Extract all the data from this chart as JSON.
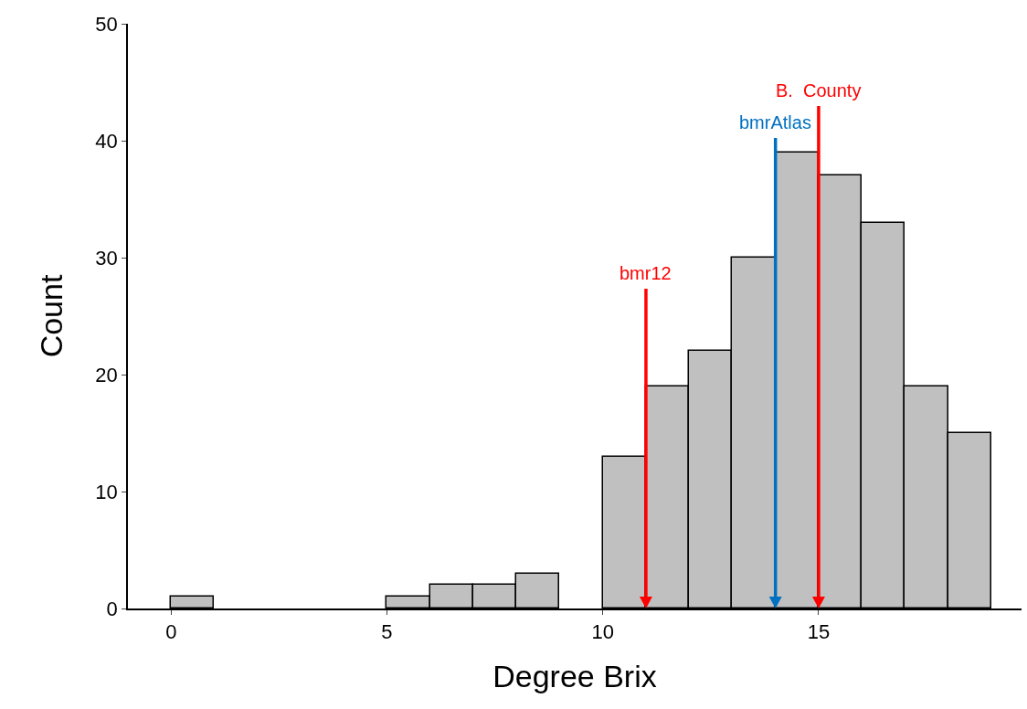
{
  "chart_data": {
    "type": "histogram",
    "xlabel": "Degree Brix",
    "ylabel": "Count",
    "bins": [
      0,
      1,
      2,
      3,
      4,
      5,
      6,
      7,
      8,
      9,
      10,
      11,
      12,
      13,
      14,
      15,
      16,
      17,
      18,
      19
    ],
    "values": [
      1,
      0,
      0,
      0,
      0,
      1,
      2,
      2,
      3,
      0,
      13,
      19,
      22,
      30,
      39,
      37,
      33,
      19,
      15
    ],
    "color": "#c0c0c0",
    "xlim": [
      -1,
      19.7
    ],
    "xticks": [
      0,
      5,
      10,
      15
    ],
    "ylim": [
      0,
      50
    ],
    "yticks": [
      0,
      10,
      20,
      30,
      40,
      50
    ],
    "grid": false,
    "ref_lines": [
      {
        "axis": "x",
        "value": 11,
        "label": "bmr12",
        "color": "#ff0000"
      },
      {
        "axis": "x",
        "value": 14,
        "label": "bmrAtlas",
        "color": "#0070c0"
      },
      {
        "axis": "x",
        "value": 15,
        "label": "B.  County",
        "color": "#ff0000"
      }
    ]
  }
}
